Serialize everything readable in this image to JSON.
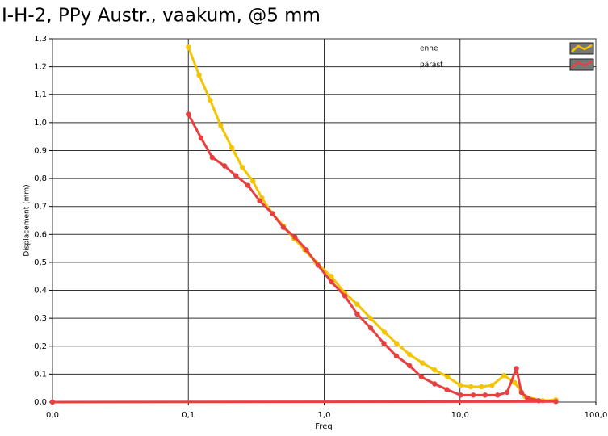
{
  "chart_data": {
    "type": "line",
    "title": "I-H-2, PPy Austr., vaakum, @5 mm",
    "x_label": "Freq",
    "y_label": "Displacement (mm)",
    "x_scale": "log",
    "grid": true,
    "legend_position": "top-right",
    "xlim": [
      0.01,
      100
    ],
    "xticks": [
      {
        "value": 0.01,
        "label": "0,0"
      },
      {
        "value": 0.1,
        "label": "0,1"
      },
      {
        "value": 1,
        "label": "1,0"
      },
      {
        "value": 10,
        "label": "10,0"
      },
      {
        "value": 100,
        "label": "100,0"
      }
    ],
    "ylim": [
      0,
      1.3
    ],
    "yticks": [
      {
        "value": 0,
        "label": "0,0"
      },
      {
        "value": 0.1,
        "label": "0,1"
      },
      {
        "value": 0.2,
        "label": "0,2"
      },
      {
        "value": 0.3,
        "label": "0,3"
      },
      {
        "value": 0.4,
        "label": "0,4"
      },
      {
        "value": 0.5,
        "label": "0,5"
      },
      {
        "value": 0.6,
        "label": "0,6"
      },
      {
        "value": 0.7,
        "label": "0,7"
      },
      {
        "value": 0.8,
        "label": "0,8"
      },
      {
        "value": 0.9,
        "label": "0,9"
      },
      {
        "value": 1.0,
        "label": "1,0"
      },
      {
        "value": 1.1,
        "label": "1,1"
      },
      {
        "value": 1.2,
        "label": "1,2"
      },
      {
        "value": 1.3,
        "label": "1,3"
      }
    ],
    "series": [
      {
        "name": "enne",
        "color": "#f5c400",
        "x": [
          0.1,
          0.12,
          0.145,
          0.173,
          0.209,
          0.25,
          0.299,
          0.348,
          0.415,
          0.502,
          0.6,
          0.718,
          0.869,
          1.127,
          1.42,
          1.75,
          2.2,
          2.78,
          3.41,
          4.25,
          5.29,
          6.5,
          8.1,
          10.07,
          12.0,
          14.4,
          17.2,
          21.1,
          25.2,
          30.1,
          40.7,
          50.7
        ],
        "values": [
          1.27,
          1.17,
          1.08,
          0.99,
          0.91,
          0.84,
          0.79,
          0.73,
          0.675,
          0.63,
          0.585,
          0.545,
          0.5,
          0.45,
          0.39,
          0.35,
          0.3,
          0.25,
          0.21,
          0.17,
          0.14,
          0.115,
          0.09,
          0.06,
          0.055,
          0.055,
          0.06,
          0.095,
          0.07,
          0.02,
          0.005,
          0.008
        ]
      },
      {
        "name": "pärast",
        "color": "#e84040",
        "x": [
          0.1,
          0.124,
          0.15,
          0.185,
          0.224,
          0.275,
          0.335,
          0.415,
          0.5,
          0.61,
          0.74,
          0.9,
          1.13,
          1.42,
          1.75,
          2.2,
          2.75,
          3.4,
          4.25,
          5.2,
          6.5,
          8.0,
          10.1,
          12.5,
          15.3,
          18.9,
          22.2,
          26.0,
          28.3,
          31.3,
          38.0,
          50.7,
          0.01
        ],
        "values": [
          1.03,
          0.945,
          0.875,
          0.845,
          0.81,
          0.775,
          0.72,
          0.675,
          0.625,
          0.59,
          0.545,
          0.49,
          0.43,
          0.38,
          0.315,
          0.265,
          0.21,
          0.165,
          0.13,
          0.09,
          0.065,
          0.045,
          0.025,
          0.025,
          0.025,
          0.025,
          0.035,
          0.12,
          0.035,
          0.015,
          0.005,
          0.002,
          0
        ]
      }
    ]
  }
}
